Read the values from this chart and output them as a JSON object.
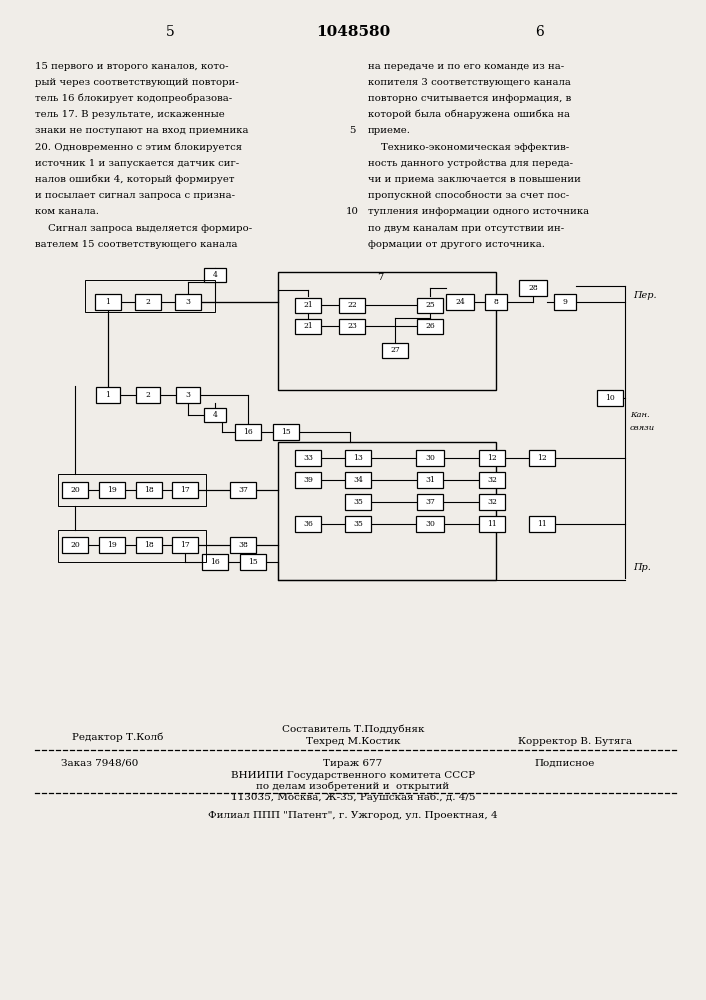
{
  "page_number_left": "5",
  "patent_number": "1048580",
  "page_number_right": "6",
  "left_col_text": [
    "15 первого и второго каналов, кото-",
    "рый через соответствующий повтори-",
    "тель 16 блокирует кодопреобразова-",
    "тель 17. В результате, искаженные",
    "знаки не поступают на вход приемника",
    "20. Одновременно с этим блокируется",
    "источник 1 и запускается датчик сиг-",
    "налов ошибки 4, который формирует",
    "и посылает сигнал запроса с призна-",
    "ком канала.",
    "    Сигнал запроса выделяется формиро-",
    "вателем 15 соответствующего канала"
  ],
  "right_col_text": [
    "на передаче и по его команде из на-",
    "копителя 3 соответствующего канала",
    "повторно считывается информация, в",
    "которой была обнаружена ошибка на",
    "приеме.",
    "    Технико-экономическая эффектив-",
    "ность данного устройства для переда-",
    "чи и приема заключается в повышении",
    "пропускной способности за счет пос-",
    "тупления информации одного источника",
    "по двум каналам при отсутствии ин-",
    "формации от другого источника."
  ],
  "footer_line1_left": "Редактор Т.Колб",
  "footer_line1_center": "Составитель Т.Поддубняк",
  "footer_line2_center": "Техред М.Костик",
  "footer_line2_right": "Корректор В. Бутяга",
  "footer_order": "Заказ 7948/60",
  "footer_edition": "Тираж 677",
  "footer_sub": "Подписное",
  "footer_vniipi1": "ВНИИПИ Государственного комитета СССР",
  "footer_vniipi2": "по делам изобретений и  открытий",
  "footer_vniipi3": "113035, Москва, Ж-35, Раушская наб., д. 4/5",
  "footer_filial": "Филиал ППП \"Патент\", г. Ужгород, ул. Проектная, 4",
  "bg_color": "#f0ede8"
}
